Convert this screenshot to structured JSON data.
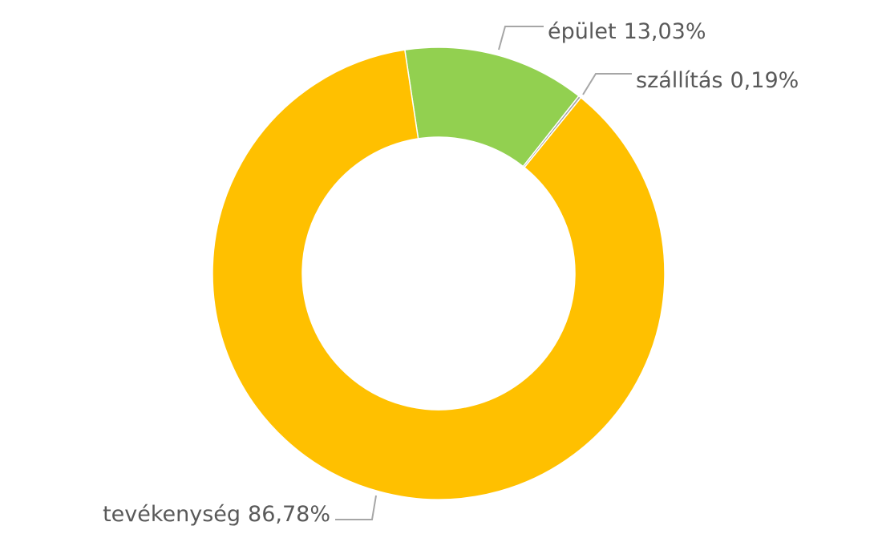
{
  "chart_data": {
    "type": "donut",
    "categories": [
      "épület",
      "szállítás",
      "tevékenység"
    ],
    "values": [
      13.03,
      0.19,
      86.78
    ],
    "value_labels": [
      "13,03%",
      "0,19%",
      "86,78%"
    ],
    "colors": [
      "#92d050",
      "#a5a5a5",
      "#ffc000"
    ]
  }
}
